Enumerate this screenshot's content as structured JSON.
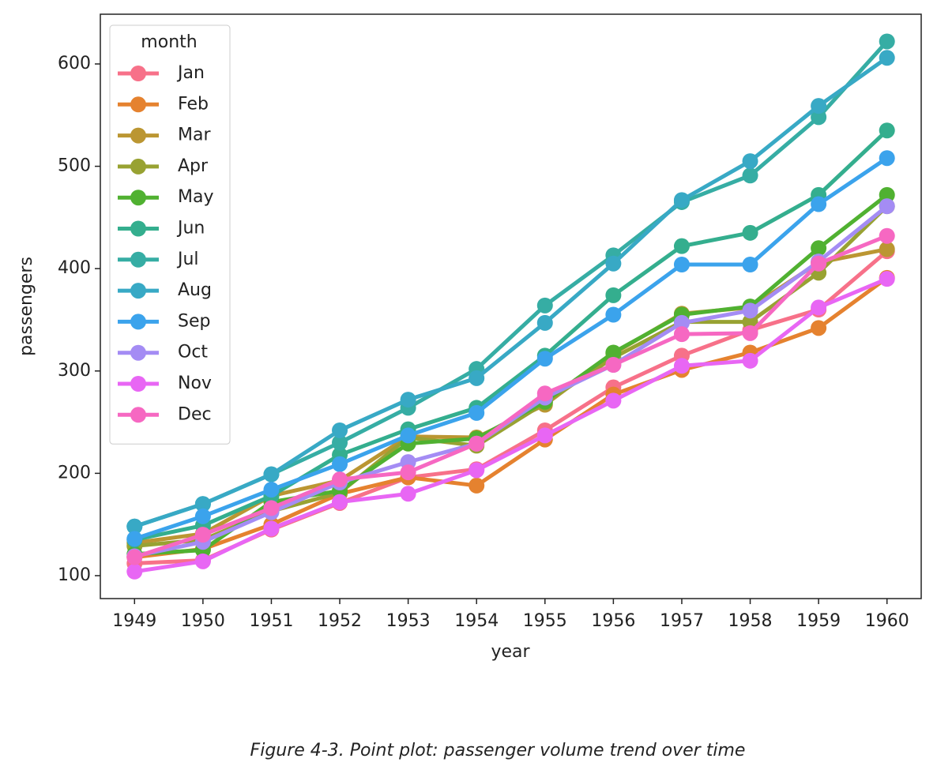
{
  "chart_data": {
    "type": "line",
    "caption": "Figure 4-3. Point plot: passenger volume trend over time",
    "x_label": "year",
    "y_label": "passengers",
    "legend_title": "month",
    "legend_position": "upper left",
    "categories": [
      "1949",
      "1950",
      "1951",
      "1952",
      "1953",
      "1954",
      "1955",
      "1956",
      "1957",
      "1958",
      "1959",
      "1960"
    ],
    "ylim": [
      77.6,
      648.6
    ],
    "yticks": [
      100,
      200,
      300,
      400,
      500,
      600
    ],
    "series": [
      {
        "name": "Jan",
        "color": "#f77189",
        "values": [
          112,
          115,
          145,
          171,
          196,
          204,
          242,
          284,
          315,
          340,
          360,
          417
        ]
      },
      {
        "name": "Feb",
        "color": "#e5822f",
        "values": [
          118,
          126,
          150,
          180,
          196,
          188,
          233,
          277,
          301,
          318,
          342,
          391
        ]
      },
      {
        "name": "Mar",
        "color": "#bb9632",
        "values": [
          132,
          141,
          178,
          193,
          236,
          235,
          267,
          317,
          356,
          362,
          406,
          419
        ]
      },
      {
        "name": "Apr",
        "color": "#98a232",
        "values": [
          129,
          135,
          163,
          181,
          235,
          227,
          269,
          313,
          348,
          348,
          396,
          461
        ]
      },
      {
        "name": "May",
        "color": "#50b131",
        "values": [
          121,
          125,
          172,
          183,
          229,
          234,
          270,
          318,
          355,
          363,
          420,
          472
        ]
      },
      {
        "name": "Jun",
        "color": "#34ae8e",
        "values": [
          135,
          149,
          178,
          218,
          243,
          264,
          315,
          374,
          422,
          435,
          472,
          535
        ]
      },
      {
        "name": "Jul",
        "color": "#36ada4",
        "values": [
          148,
          170,
          199,
          230,
          264,
          302,
          364,
          413,
          465,
          491,
          548,
          622
        ]
      },
      {
        "name": "Aug",
        "color": "#38a9c5",
        "values": [
          148,
          170,
          199,
          242,
          272,
          293,
          347,
          405,
          467,
          505,
          559,
          606
        ]
      },
      {
        "name": "Sep",
        "color": "#3ba3ec",
        "values": [
          136,
          158,
          184,
          209,
          237,
          259,
          312,
          355,
          404,
          404,
          463,
          508
        ]
      },
      {
        "name": "Oct",
        "color": "#a48cf4",
        "values": [
          119,
          133,
          162,
          191,
          211,
          229,
          274,
          306,
          347,
          359,
          407,
          461
        ]
      },
      {
        "name": "Nov",
        "color": "#e866f4",
        "values": [
          104,
          114,
          146,
          172,
          180,
          203,
          237,
          271,
          305,
          310,
          362,
          390
        ]
      },
      {
        "name": "Dec",
        "color": "#f668c2",
        "values": [
          118,
          140,
          166,
          194,
          201,
          229,
          278,
          306,
          336,
          337,
          405,
          432
        ]
      }
    ]
  }
}
